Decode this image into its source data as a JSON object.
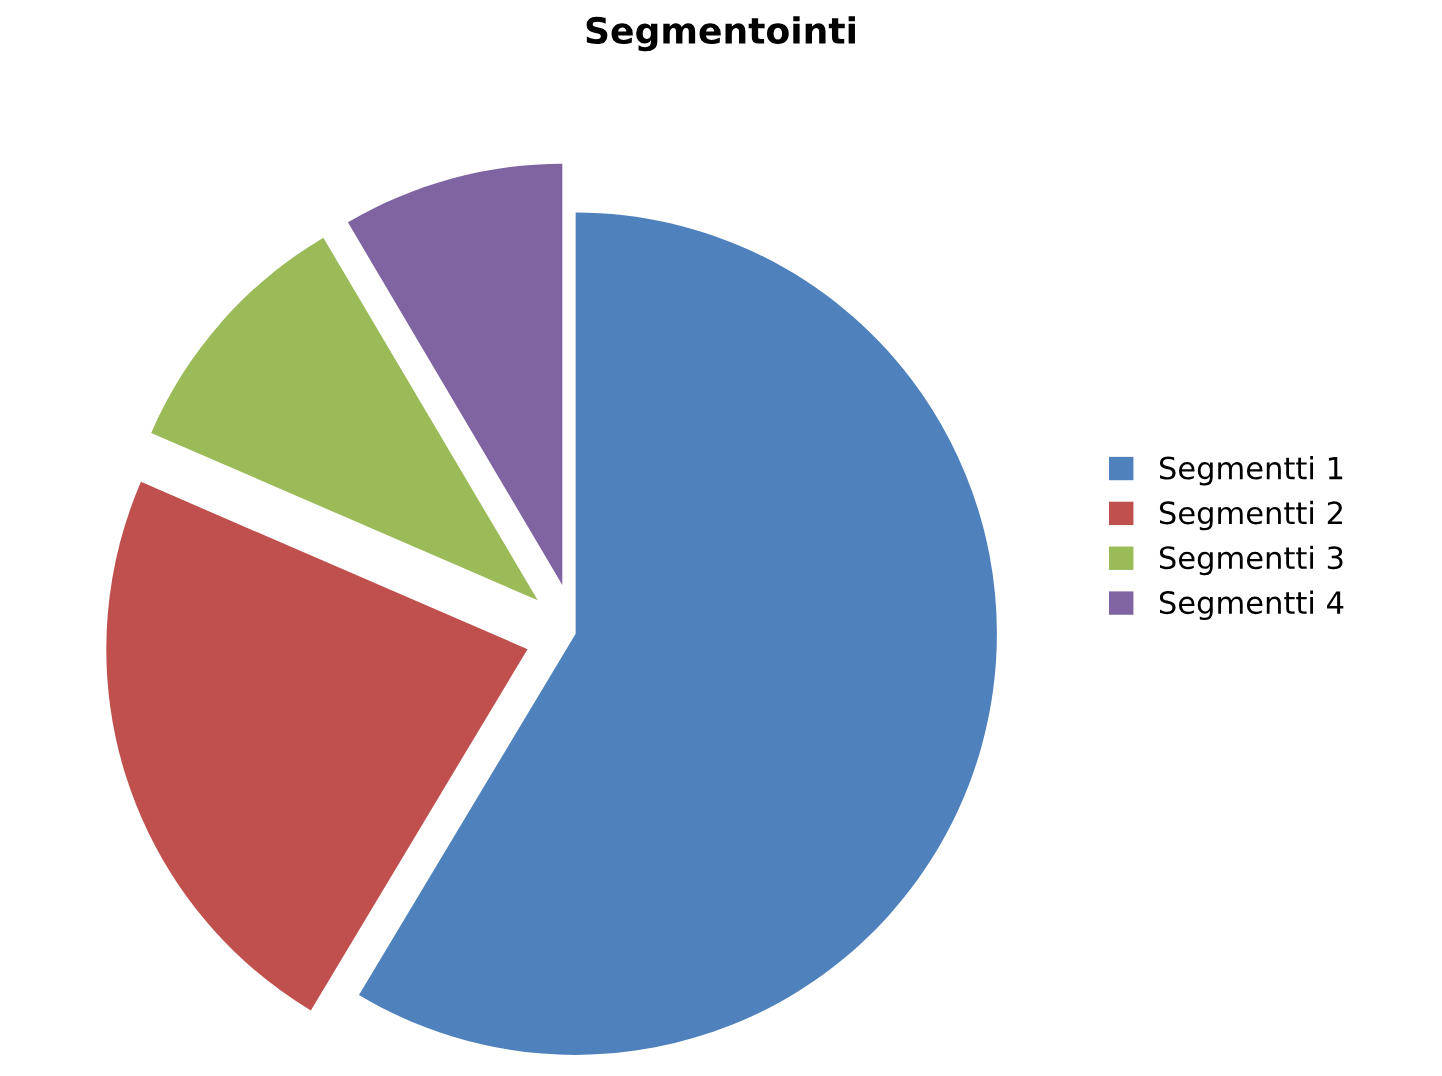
{
  "chart_data": {
    "type": "pie",
    "title": "Segmentointi",
    "categories": [
      "Segmentti 1",
      "Segmentti 2",
      "Segmentti 3",
      "Segmentti 4"
    ],
    "values": [
      58.6,
      22.9,
      10.0,
      8.5
    ],
    "colors": [
      "#4f81bd",
      "#c0504d",
      "#9bbb59",
      "#8064a2"
    ],
    "legend": "right"
  }
}
